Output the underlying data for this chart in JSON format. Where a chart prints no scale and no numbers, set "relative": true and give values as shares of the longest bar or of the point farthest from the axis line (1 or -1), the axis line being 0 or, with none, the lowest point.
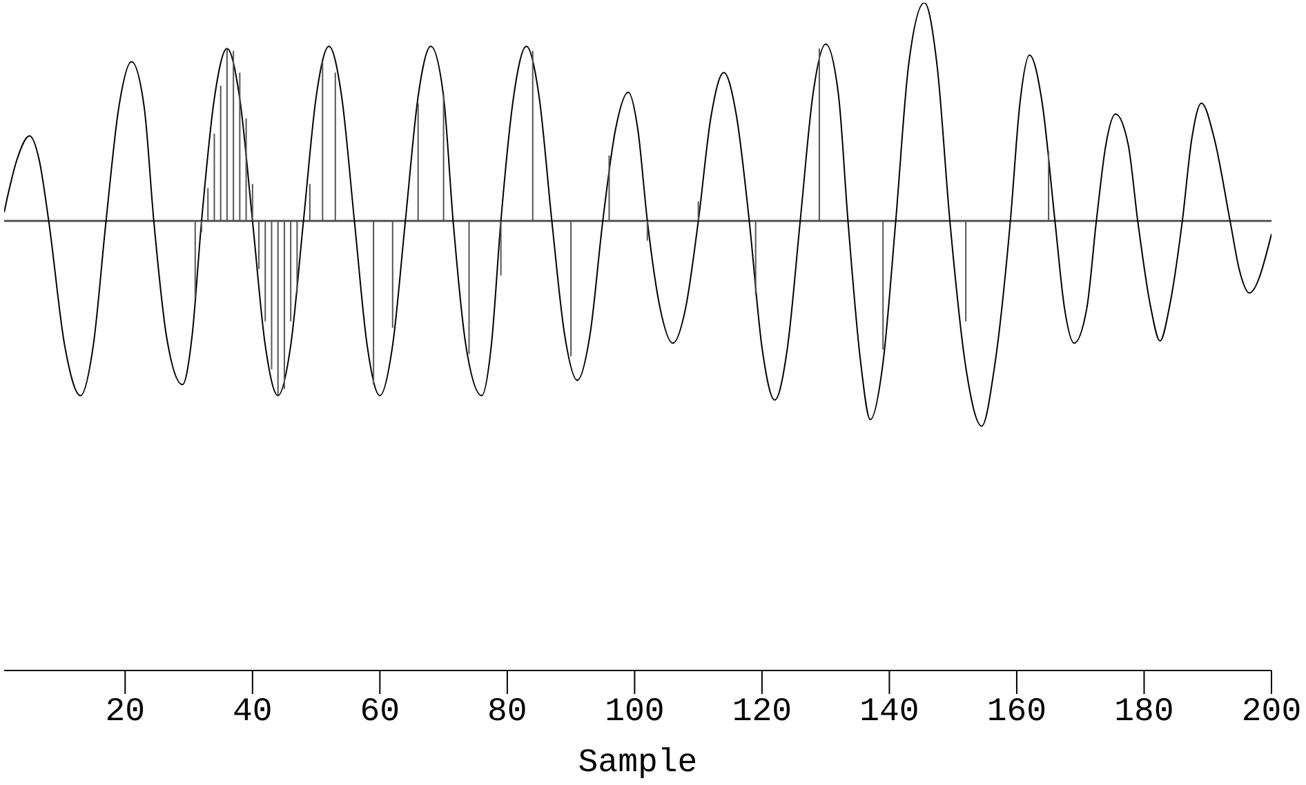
{
  "chart_data": {
    "type": "line",
    "relative": true,
    "xlabel": "Sample",
    "xlim": [
      1,
      200
    ],
    "xticks": [
      20,
      40,
      60,
      80,
      100,
      120,
      140,
      160,
      180,
      200
    ],
    "grid": false,
    "legend": false,
    "marker": "none",
    "line_style": "solid",
    "series": [
      {
        "color": "#000000",
        "x": [
          1,
          3,
          5,
          6.5,
          8,
          10.5,
          13,
          15,
          17,
          19,
          21,
          23,
          24.5,
          26.5,
          29,
          30.5,
          32,
          34,
          36,
          38,
          40,
          42,
          44,
          46,
          48,
          50,
          52,
          54,
          56,
          58,
          60,
          62,
          64,
          66,
          68,
          70,
          71.5,
          73.5,
          76,
          77.5,
          79,
          81,
          83,
          85,
          87,
          89,
          91,
          93,
          95,
          97,
          99,
          100.5,
          102,
          104,
          106,
          108,
          110,
          112,
          114,
          116,
          118,
          120,
          122,
          124,
          126,
          128,
          130,
          132,
          133.5,
          135.5,
          137,
          139,
          141,
          143,
          145.5,
          147.5,
          149.5,
          152,
          154.5,
          156.5,
          159,
          160.5,
          162,
          164,
          166,
          167.5,
          169,
          171,
          172.5,
          174,
          175.5,
          177.5,
          179,
          181,
          182.5,
          184,
          186,
          187.5,
          189,
          191,
          193.5,
          195,
          196.5,
          200
        ],
        "values": [
          0.04,
          0.28,
          0.39,
          0.28,
          0,
          -0.57,
          -0.8,
          -0.57,
          0,
          0.52,
          0.73,
          0.52,
          0,
          -0.53,
          -0.75,
          -0.53,
          0,
          0.56,
          0.79,
          0.56,
          0,
          -0.57,
          -0.8,
          -0.57,
          0,
          0.57,
          0.8,
          0.57,
          0,
          -0.57,
          -0.8,
          -0.57,
          0,
          0.57,
          0.8,
          0.57,
          0,
          -0.57,
          -0.8,
          -0.57,
          0,
          0.57,
          0.8,
          0.57,
          0,
          -0.52,
          -0.73,
          -0.52,
          0,
          0.42,
          0.59,
          0.42,
          0,
          -0.4,
          -0.56,
          -0.4,
          0,
          0.48,
          0.68,
          0.48,
          0,
          -0.58,
          -0.82,
          -0.58,
          0,
          0.58,
          0.81,
          0.58,
          0,
          -0.65,
          -0.91,
          -0.65,
          0,
          0.71,
          1,
          0.71,
          0,
          -0.67,
          -0.94,
          -0.67,
          0,
          0.54,
          0.76,
          0.54,
          0,
          -0.4,
          -0.56,
          -0.4,
          0,
          0.35,
          0.49,
          0.35,
          0,
          -0.39,
          -0.55,
          -0.39,
          0,
          0.38,
          0.54,
          0.38,
          0,
          -0.23,
          -0.33,
          -0.06
        ]
      },
      {
        "type": "bar",
        "color": "#555555",
        "x": [
          31,
          32,
          33,
          34,
          35,
          36,
          37,
          38,
          39,
          40,
          41,
          42,
          43,
          44,
          45,
          46,
          47,
          49,
          51,
          53,
          59,
          62,
          66,
          70,
          74,
          79,
          84,
          90,
          96,
          102,
          110,
          119,
          129,
          139,
          152,
          165
        ],
        "values": [
          -0.35,
          -0.05,
          0.15,
          0.4,
          0.62,
          0.79,
          0.78,
          0.68,
          0.47,
          0.17,
          -0.22,
          -0.46,
          -0.68,
          -0.8,
          -0.77,
          -0.46,
          -0.33,
          0.17,
          0.73,
          0.68,
          -0.75,
          -0.49,
          0.54,
          0.58,
          -0.61,
          -0.25,
          0.78,
          -0.62,
          0.3,
          -0.09,
          0.09,
          -0.34,
          0.79,
          -0.59,
          -0.46,
          0.32
        ]
      }
    ]
  }
}
